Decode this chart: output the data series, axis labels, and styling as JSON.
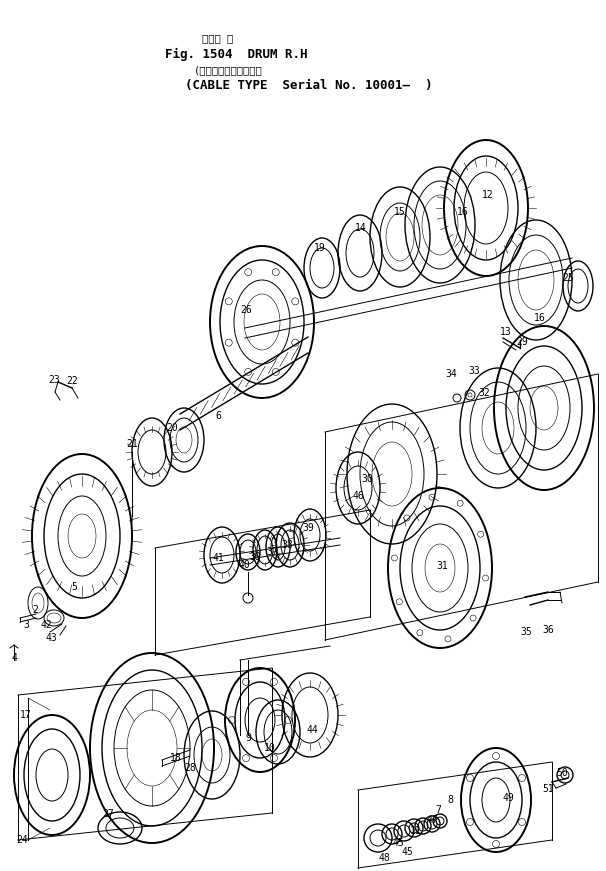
{
  "title_line1_jp": "ドラム 右",
  "title_line1": "Fig. 1504  DRUM R.H",
  "title_line2_jp": "(ケーブル式、適用号等",
  "title_line2": "(CABLE TYPE  Serial No. 10001–  )",
  "bg_color": "#ffffff",
  "line_color": "#000000",
  "fig_width": 6.06,
  "fig_height": 8.71,
  "dpi": 100
}
